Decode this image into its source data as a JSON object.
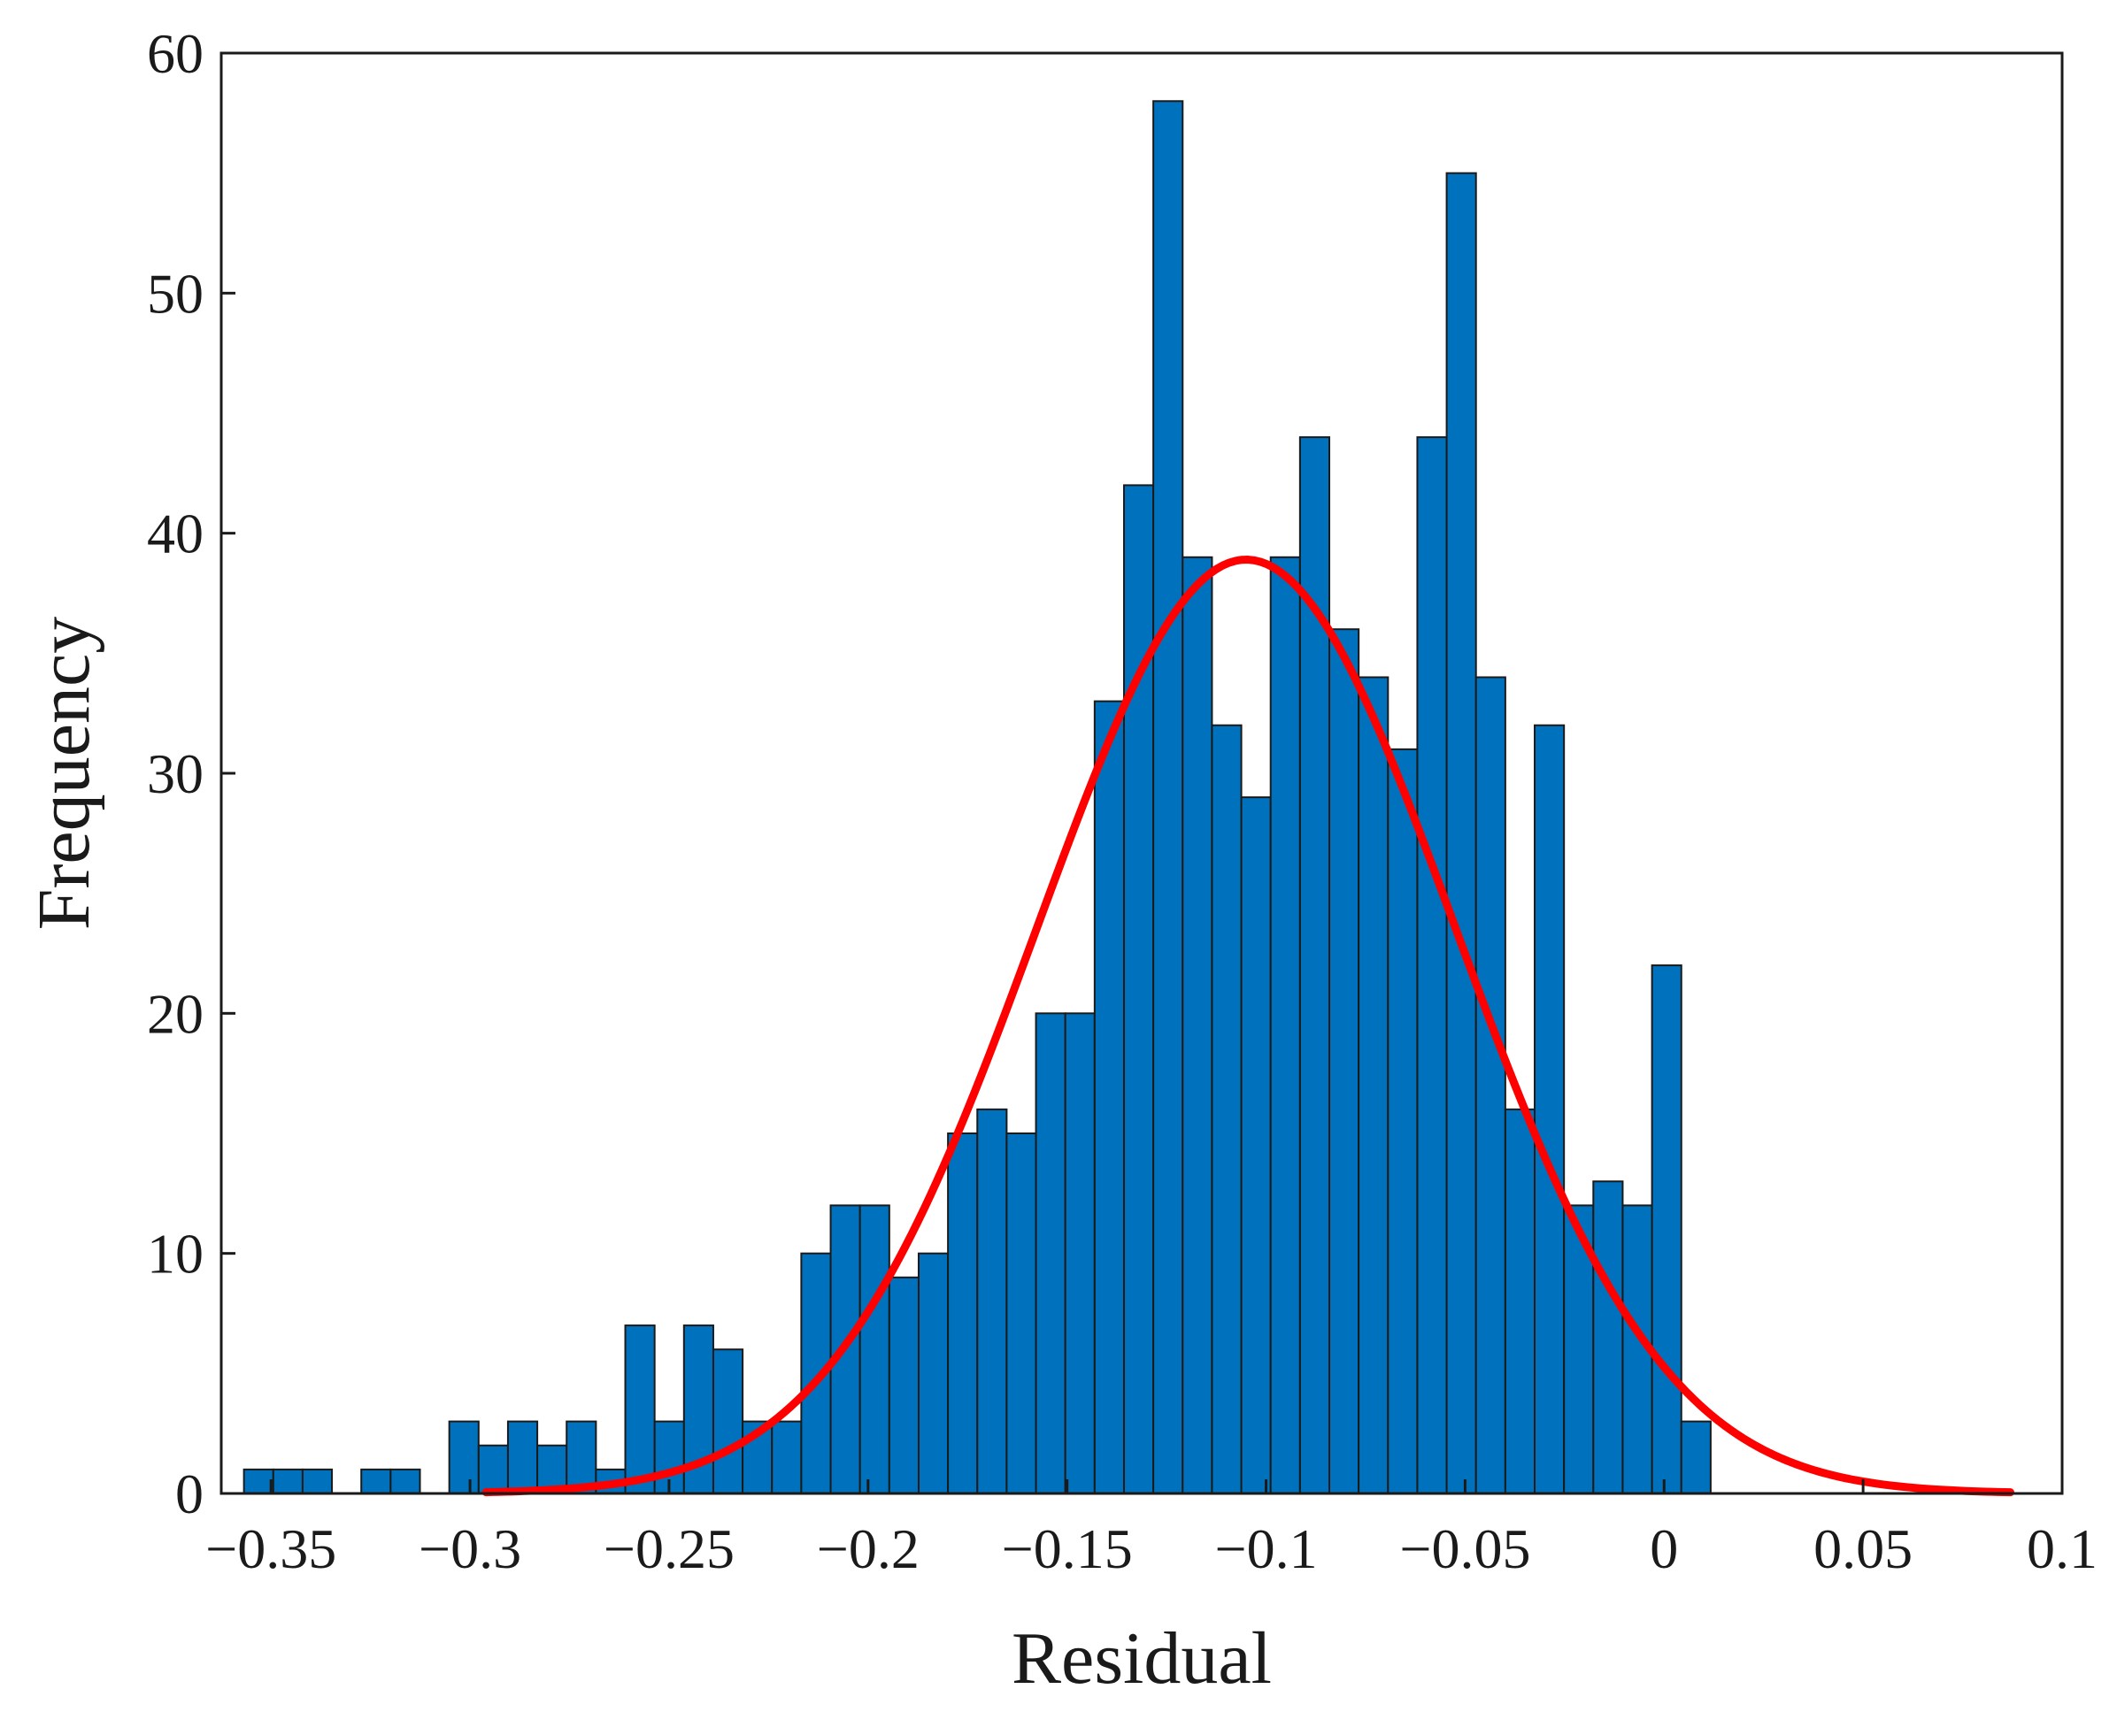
{
  "chart_data": {
    "type": "bar",
    "subtype": "histogram",
    "title": "",
    "xlabel": "Residual",
    "ylabel": "Frequency",
    "xlim": [
      -0.3625,
      0.1
    ],
    "ylim": [
      0,
      60
    ],
    "xticks": [
      -0.35,
      -0.3,
      -0.25,
      -0.2,
      -0.15,
      -0.1,
      -0.05,
      0,
      0.05,
      0.1
    ],
    "xtick_labels": [
      "−0.35",
      "−0.3",
      "−0.25",
      "−0.2",
      "−0.15",
      "−0.1",
      "−0.05",
      "0",
      "0.05",
      "0.1"
    ],
    "yticks": [
      0,
      10,
      20,
      30,
      40,
      50,
      60
    ],
    "ytick_labels": [
      "0",
      "10",
      "20",
      "30",
      "40",
      "50",
      "60"
    ],
    "grid": false,
    "bin_start": -0.3568,
    "bin_width": 0.00737,
    "values": [
      1,
      1,
      1,
      0,
      1,
      1,
      0,
      3,
      2,
      3,
      2,
      3,
      1,
      7,
      3,
      7,
      6,
      3,
      3,
      10,
      12,
      12,
      9,
      10,
      15,
      16,
      15,
      20,
      20,
      33,
      42,
      58,
      39,
      32,
      29,
      39,
      44,
      36,
      34,
      31,
      44,
      55,
      34,
      16,
      32,
      12,
      13,
      12,
      22,
      3
    ],
    "bar_color": "#0072BD",
    "bar_edge_color": "#1a1a1a",
    "fit": {
      "type": "normal",
      "mean": -0.105,
      "std": 0.0525,
      "peak": 38.9,
      "x_range": [
        -0.296,
        0.087
      ],
      "color": "#FF0000"
    }
  }
}
